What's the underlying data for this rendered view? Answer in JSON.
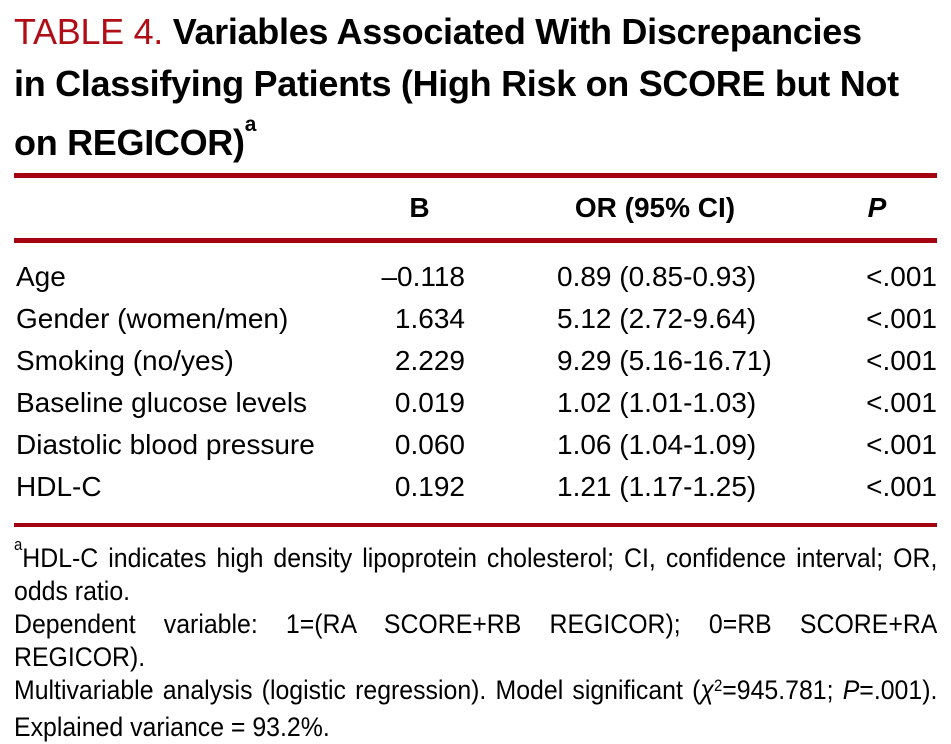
{
  "title": {
    "label": "TABLE 4.",
    "line1": "Variables Associated With Discrepancies",
    "line2": "in Classifying Patients (High Risk on SCORE but Not",
    "line3": "on REGICOR)",
    "footnote_marker": "a"
  },
  "table": {
    "columns": {
      "variable": "",
      "b": "B",
      "or": "OR (95% CI)",
      "p": "P"
    },
    "rows": [
      {
        "variable": "Age",
        "b": "–0.118",
        "or": "0.89 (0.85-0.93)",
        "p": "<.001"
      },
      {
        "variable": "Gender (women/men)",
        "b": "1.634",
        "or": "5.12 (2.72-9.64)",
        "p": "<.001"
      },
      {
        "variable": "Smoking (no/yes)",
        "b": "2.229",
        "or": "9.29 (5.16-16.71)",
        "p": "<.001"
      },
      {
        "variable": "Baseline glucose levels",
        "b": "0.019",
        "or": "1.02 (1.01-1.03)",
        "p": "<.001"
      },
      {
        "variable": "Diastolic blood pressure",
        "b": "0.060",
        "or": "1.06 (1.04-1.09)",
        "p": "<.001"
      },
      {
        "variable": "HDL-C",
        "b": "0.192",
        "or": "1.21 (1.17-1.25)",
        "p": "<.001"
      }
    ]
  },
  "footnotes": {
    "marker": "a",
    "note1": "HDL-C indicates high density lipoprotein cholesterol; CI, confidence interval; OR, odds ratio.",
    "note2": "Dependent variable: 1=(RA SCORE+RB REGICOR); 0=RB SCORE+RA REGICOR).",
    "note3_part1": "Multivariable analysis (logistic regression). Model significant (",
    "chi": "χ",
    "chi_sup": "2",
    "note3_part2": "=945.781; ",
    "p_italic": "P",
    "note3_part3": "=.001). Explained variance = 93.2%."
  },
  "colors": {
    "accent_red_title": "#b00e16",
    "rule_red": "#a30410",
    "text": "#000000",
    "background": "#ffffff"
  }
}
